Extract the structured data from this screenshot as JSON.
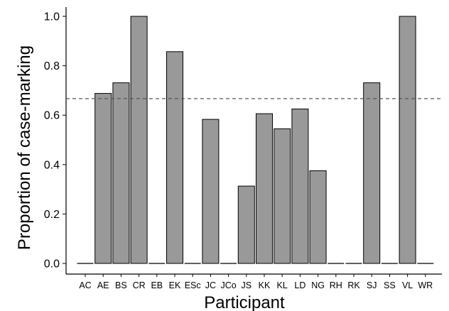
{
  "chart_data": {
    "type": "bar",
    "xlabel": "Participant",
    "ylabel": "Proportion of case-marking",
    "categories": [
      "AC",
      "AE",
      "BS",
      "CR",
      "EB",
      "EK",
      "ESc",
      "JC",
      "JCo",
      "JS",
      "KK",
      "KL",
      "LD",
      "NG",
      "RH",
      "RK",
      "SJ",
      "SS",
      "VL",
      "WR"
    ],
    "values": [
      0.0,
      0.688,
      0.731,
      1.0,
      0.0,
      0.857,
      0.0,
      0.583,
      0.0,
      0.313,
      0.606,
      0.545,
      0.625,
      0.375,
      0.0,
      0.0,
      0.731,
      0.0,
      1.0,
      0.0
    ],
    "ylim": [
      0,
      1.0
    ],
    "yticks": [
      0.0,
      0.2,
      0.4,
      0.6,
      0.8,
      1.0
    ],
    "ytick_labels": [
      "0.0",
      "0.2",
      "0.4",
      "0.6",
      "0.8",
      "1.0"
    ],
    "reference_line": 0.667,
    "bar_color": "#999999",
    "bar_edge_color": "#000000",
    "grid": false
  }
}
